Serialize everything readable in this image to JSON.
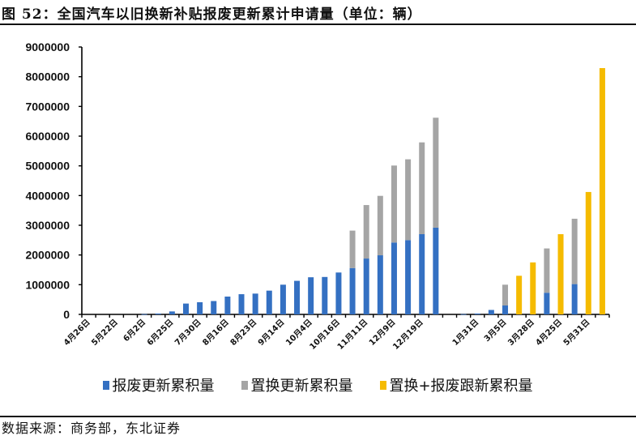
{
  "title": "图 52：全国汽车以旧换新补贴报废更新累计申请量（单位：辆）",
  "source": "数据来源：商务部，东北证券",
  "chart_data": {
    "type": "bar",
    "stacked": true,
    "title": "图 52：全国汽车以旧换新补贴报废更新累计申请量（单位：辆）",
    "unit": "辆",
    "ylim": [
      0,
      9000000
    ],
    "yticks": [
      "0",
      "1000000",
      "2000000",
      "3000000",
      "4000000",
      "5000000",
      "6000000",
      "7000000",
      "8000000",
      "9000000"
    ],
    "grid": false,
    "legend_position": "bottom",
    "categories": [
      "4月26日",
      "",
      "5月22日",
      "",
      "6月2日",
      "",
      "6月25日",
      "",
      "7月30日",
      "",
      "8月16日",
      "",
      "8月23日",
      "",
      "9月14日",
      "",
      "10月4日",
      "",
      "10月16日",
      "",
      "11月11日",
      "",
      "12月9日",
      "",
      "12月19日",
      "",
      "",
      "",
      "1月31日",
      "",
      "3月5日",
      "",
      "3月28日",
      "",
      "4月25日",
      "",
      "5月31日",
      ""
    ],
    "series": [
      {
        "name": "报废更新累积量",
        "color": "#3470c2",
        "values": [
          0,
          0,
          0,
          0,
          10000,
          30000,
          100000,
          365000,
          410000,
          450000,
          600000,
          680000,
          700000,
          800000,
          1000000,
          1130000,
          1250000,
          1260000,
          1410000,
          1560000,
          1880000,
          1990000,
          2420000,
          2500000,
          2700000,
          2920000,
          null,
          10000,
          30000,
          150000,
          300000,
          null,
          null,
          730000,
          null,
          1020000,
          null,
          null
        ]
      },
      {
        "name": "置换更新累积量",
        "color": "#a5a5a5",
        "values": [
          null,
          null,
          null,
          null,
          null,
          null,
          null,
          null,
          null,
          null,
          null,
          null,
          null,
          null,
          null,
          null,
          null,
          null,
          null,
          1260000,
          1800000,
          2000000,
          2590000,
          2720000,
          3090000,
          3700000,
          null,
          null,
          null,
          null,
          700000,
          null,
          null,
          1490000,
          null,
          2200000,
          null,
          null
        ]
      },
      {
        "name": "置换+报废跟新累积量",
        "color": "#f5bb00",
        "values": [
          null,
          null,
          null,
          null,
          null,
          null,
          null,
          null,
          null,
          null,
          null,
          null,
          null,
          null,
          null,
          null,
          null,
          null,
          null,
          null,
          null,
          null,
          null,
          null,
          null,
          null,
          null,
          null,
          null,
          null,
          null,
          1300000,
          1750000,
          null,
          2700000,
          null,
          4120000,
          8290000
        ]
      }
    ]
  }
}
